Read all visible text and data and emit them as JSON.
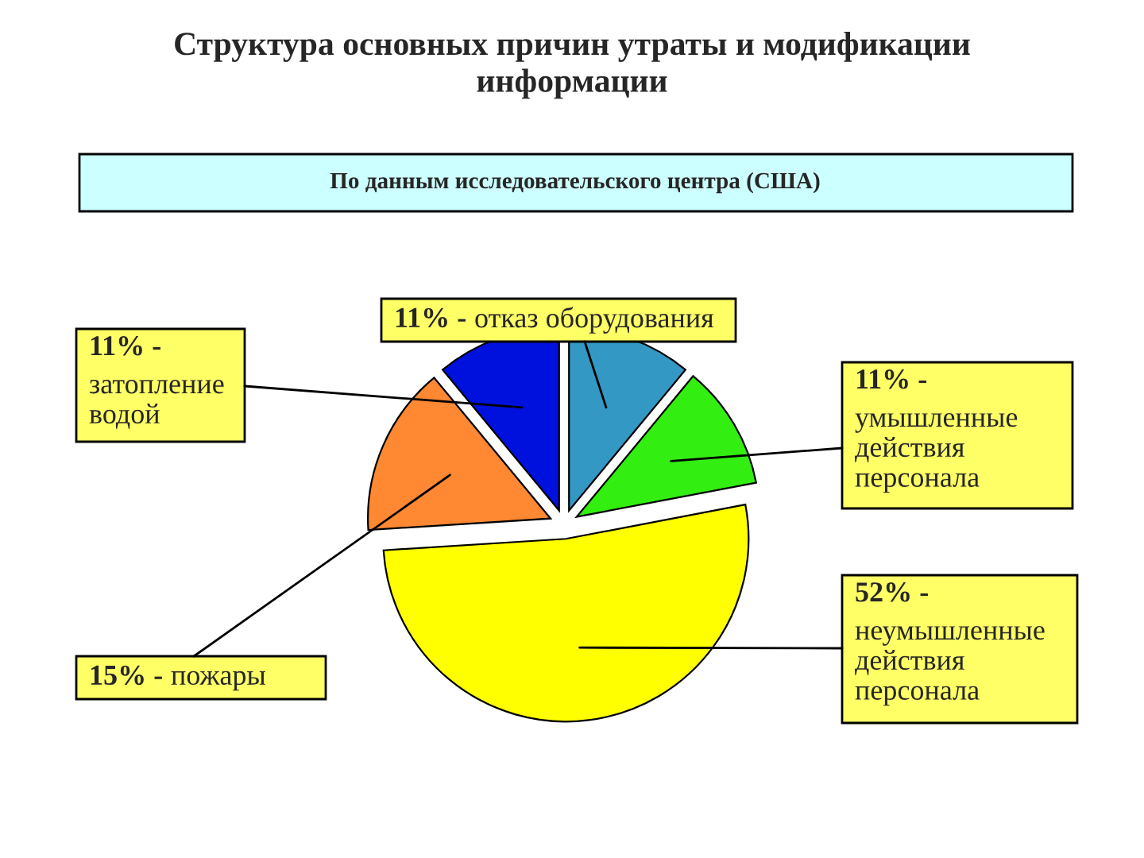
{
  "chart_data": {
    "type": "pie",
    "title": "Структура основных причин утраты и модификации информации",
    "subtitle": "По данным исследовательского центра (США)",
    "categories": [
      "отказ оборудования",
      "умышленные действия персонала",
      "неумышленные действия персонала",
      "пожары",
      "затопление водой"
    ],
    "values": [
      11,
      11,
      52,
      15,
      11
    ],
    "value_labels": [
      "11% -",
      "11% -",
      "52% -",
      "15% -",
      "11% -"
    ],
    "colors": [
      "#3399c4",
      "#33ee11",
      "#ffff00",
      "#ff8833",
      "#0011dd"
    ]
  }
}
